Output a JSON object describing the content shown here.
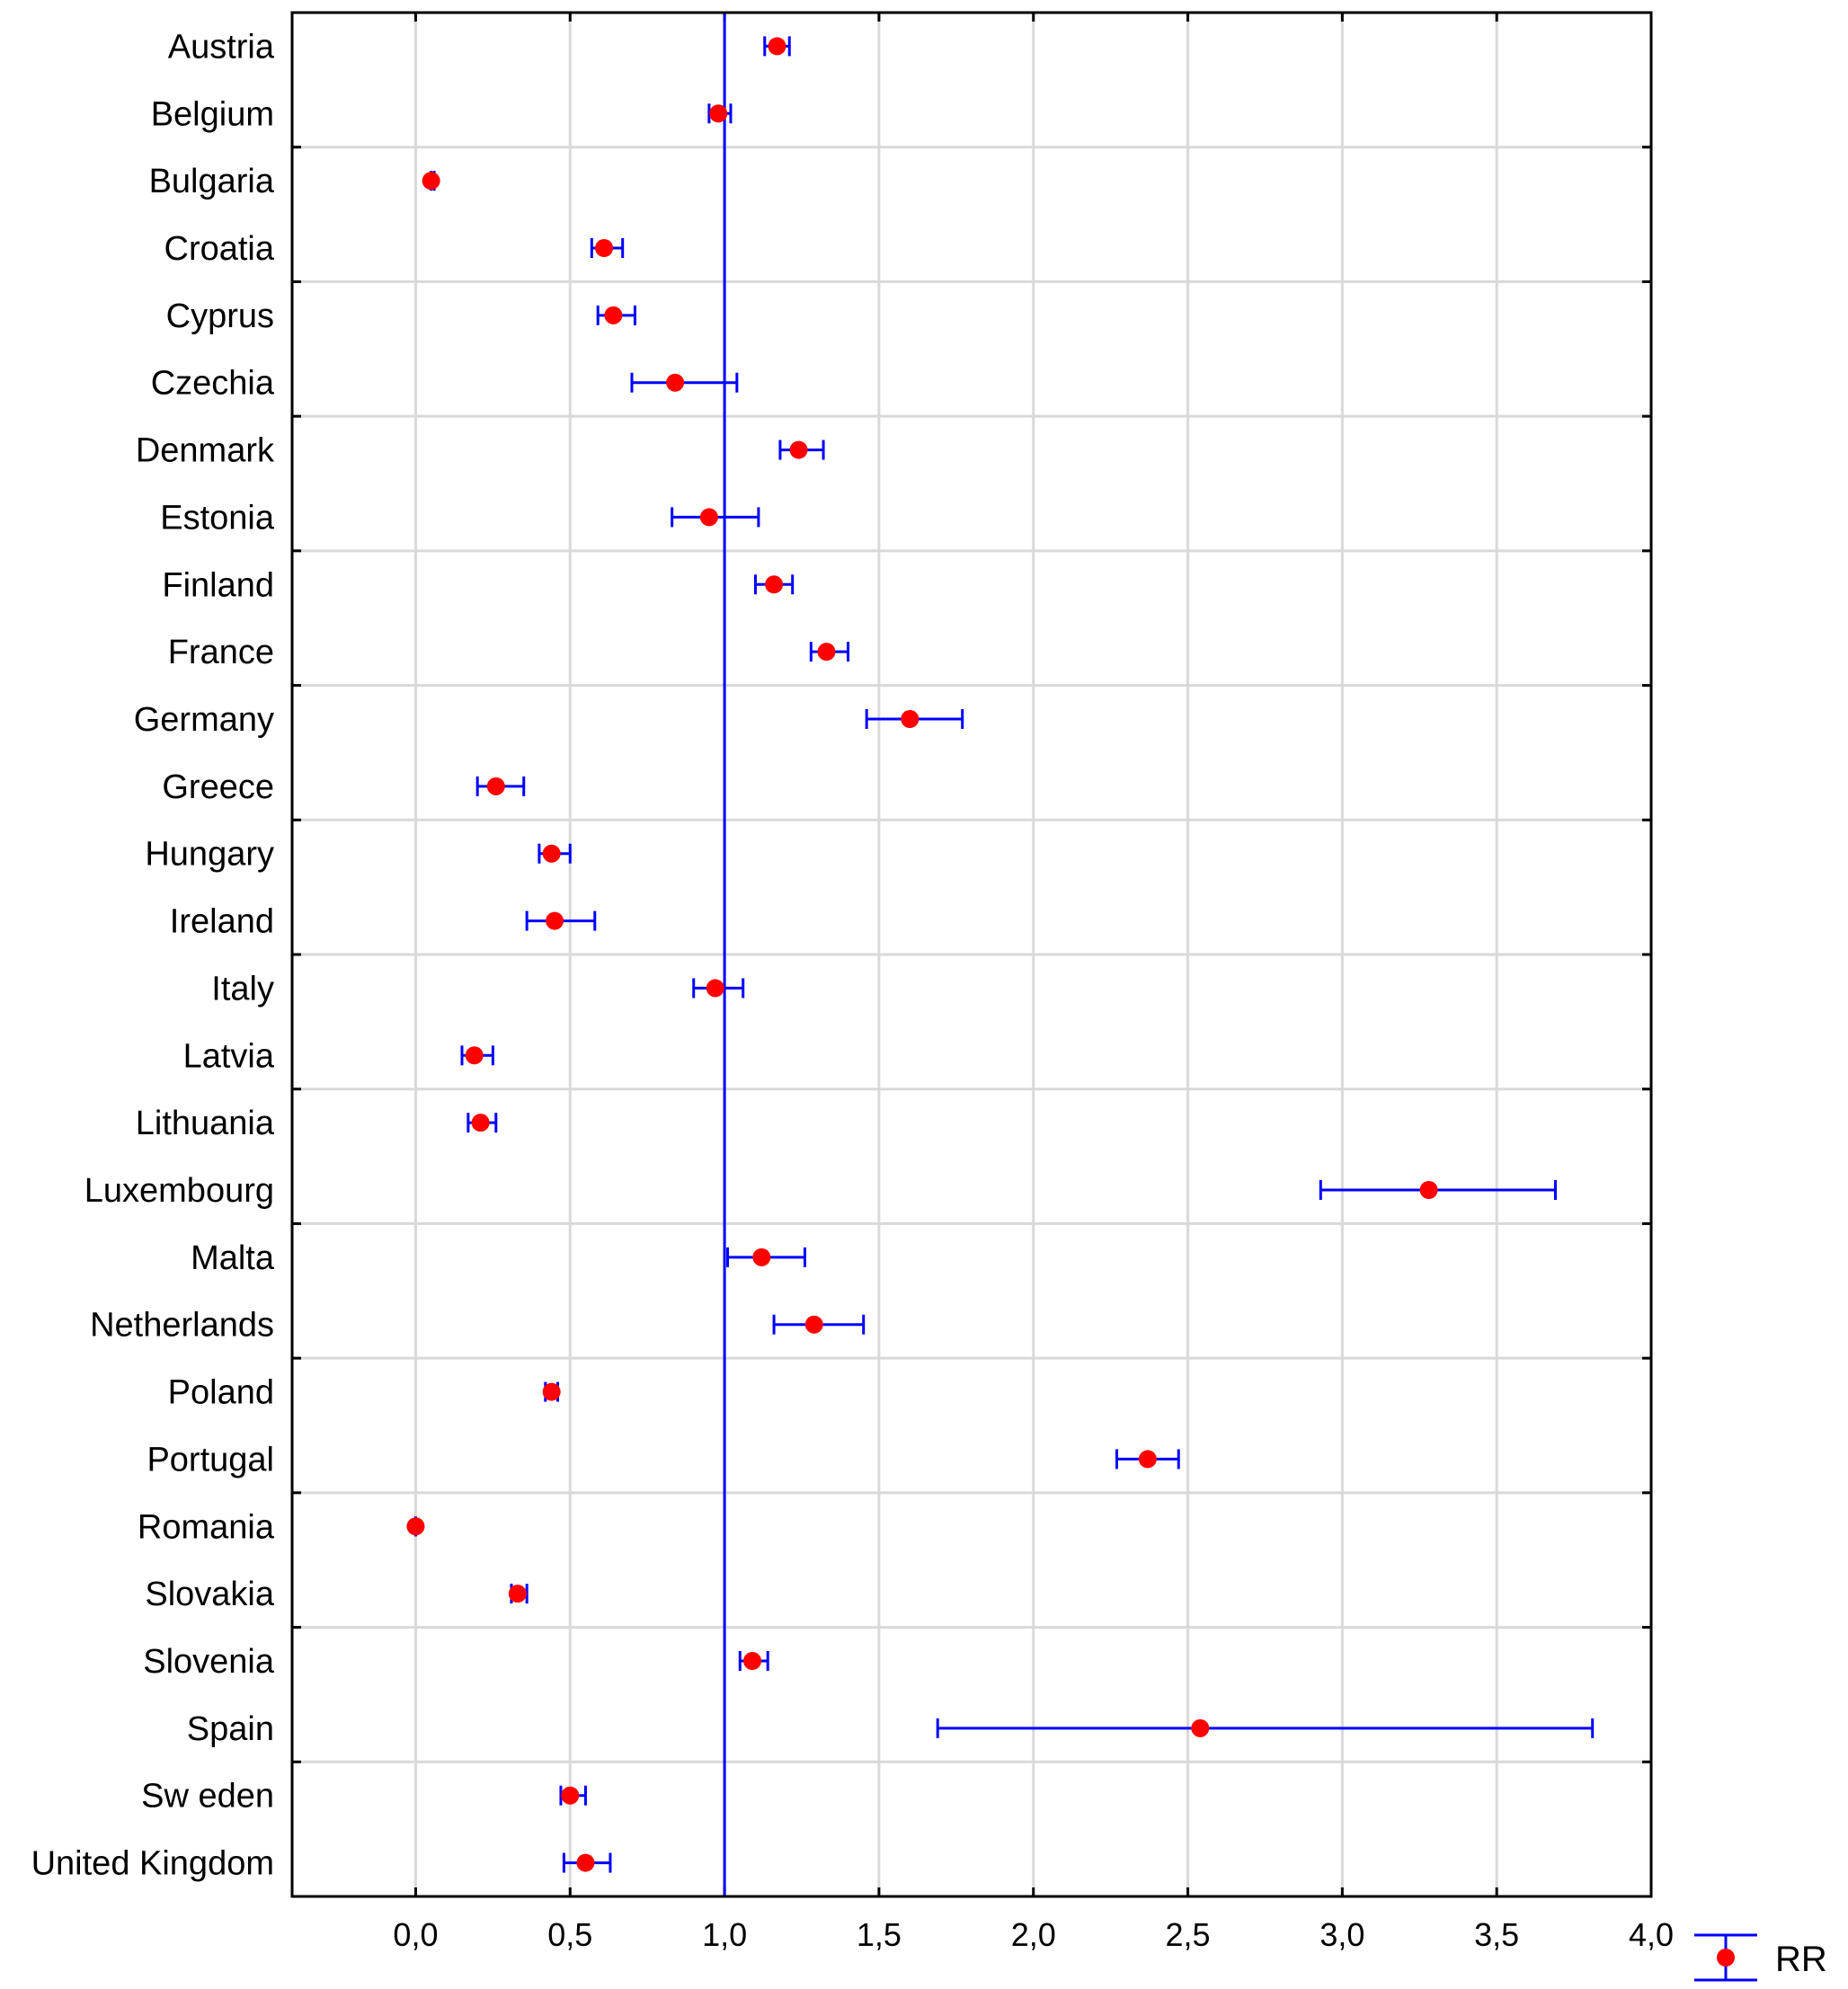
{
  "chart_data": {
    "type": "forest",
    "title": "",
    "xlabel": "",
    "ylabel": "",
    "xlim": [
      -0.4,
      4.0
    ],
    "xticks": [
      0.0,
      0.5,
      1.0,
      1.5,
      2.0,
      2.5,
      3.0,
      3.5,
      4.0
    ],
    "tick_labels": [
      "0,0",
      "0,5",
      "1,0",
      "1,5",
      "2,0",
      "2,5",
      "3,0",
      "3,5",
      "4,0"
    ],
    "reference_line": 1.0,
    "grid": true,
    "legend": {
      "position": "bottom-right",
      "label": "RR"
    },
    "colors": {
      "point": "#ff0000",
      "errorbar": "#0000ff",
      "reference": "#0000ff",
      "grid": "#d9d9d9",
      "axis": "#000000"
    },
    "series": [
      {
        "name": "RR",
        "categories": [
          {
            "label": "Austria",
            "rr": 1.17,
            "lo": 1.13,
            "hi": 1.21
          },
          {
            "label": "Belgium",
            "rr": 0.98,
            "lo": 0.95,
            "hi": 1.02
          },
          {
            "label": "Bulgaria",
            "rr": 0.05,
            "lo": 0.05,
            "hi": 0.06
          },
          {
            "label": "Croatia",
            "rr": 0.61,
            "lo": 0.57,
            "hi": 0.67
          },
          {
            "label": "Cyprus",
            "rr": 0.64,
            "lo": 0.59,
            "hi": 0.71
          },
          {
            "label": "Czechia",
            "rr": 0.84,
            "lo": 0.7,
            "hi": 1.04
          },
          {
            "label": "Denmark",
            "rr": 1.24,
            "lo": 1.18,
            "hi": 1.32
          },
          {
            "label": "Estonia",
            "rr": 0.95,
            "lo": 0.83,
            "hi": 1.11
          },
          {
            "label": "Finland",
            "rr": 1.16,
            "lo": 1.1,
            "hi": 1.22
          },
          {
            "label": "France",
            "rr": 1.33,
            "lo": 1.28,
            "hi": 1.4
          },
          {
            "label": "Germany",
            "rr": 1.6,
            "lo": 1.46,
            "hi": 1.77
          },
          {
            "label": "Greece",
            "rr": 0.26,
            "lo": 0.2,
            "hi": 0.35
          },
          {
            "label": "Hungary",
            "rr": 0.44,
            "lo": 0.4,
            "hi": 0.5
          },
          {
            "label": "Ireland",
            "rr": 0.45,
            "lo": 0.36,
            "hi": 0.58
          },
          {
            "label": "Italy",
            "rr": 0.97,
            "lo": 0.9,
            "hi": 1.06
          },
          {
            "label": "Latvia",
            "rr": 0.19,
            "lo": 0.15,
            "hi": 0.25
          },
          {
            "label": "Lithuania",
            "rr": 0.21,
            "lo": 0.17,
            "hi": 0.26
          },
          {
            "label": "Luxembourg",
            "rr": 3.28,
            "lo": 2.93,
            "hi": 3.69
          },
          {
            "label": "Malta",
            "rr": 1.12,
            "lo": 1.01,
            "hi": 1.26
          },
          {
            "label": "Netherlands",
            "rr": 1.29,
            "lo": 1.16,
            "hi": 1.45
          },
          {
            "label": "Poland",
            "rr": 0.44,
            "lo": 0.42,
            "hi": 0.46
          },
          {
            "label": "Portugal",
            "rr": 2.37,
            "lo": 2.27,
            "hi": 2.47
          },
          {
            "label": "Romania",
            "rr": 0.0,
            "lo": 0.0,
            "hi": 0.0
          },
          {
            "label": "Slovakia",
            "rr": 0.33,
            "lo": 0.31,
            "hi": 0.36
          },
          {
            "label": "Slovenia",
            "rr": 1.09,
            "lo": 1.05,
            "hi": 1.14
          },
          {
            "label": "Spain",
            "rr": 2.54,
            "lo": 1.69,
            "hi": 3.81
          },
          {
            "label": "Sw eden",
            "rr": 0.5,
            "lo": 0.47,
            "hi": 0.55
          },
          {
            "label": "United Kingdom",
            "rr": 0.55,
            "lo": 0.48,
            "hi": 0.63
          }
        ]
      }
    ]
  }
}
